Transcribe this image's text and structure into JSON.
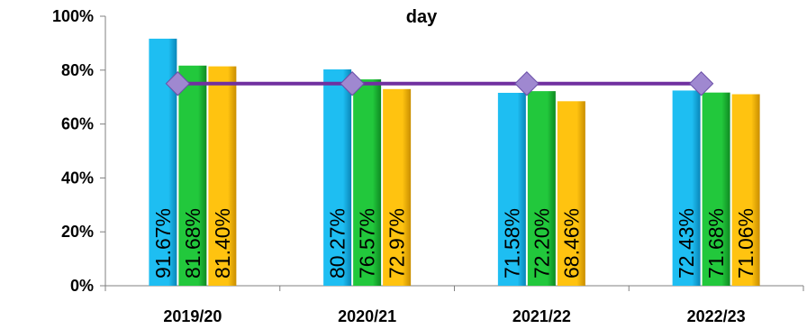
{
  "chart_data": {
    "type": "bar",
    "title": "day",
    "categories": [
      "2019/20",
      "2020/21",
      "2021/22",
      "2022/23"
    ],
    "series": [
      {
        "values": [
          91.67,
          80.27,
          71.58,
          72.43
        ],
        "labels": [
          "91.67%",
          "80.27%",
          "71.58%",
          "72.43%"
        ],
        "color": "#1EBEF2",
        "color_dark": "#0A86B8"
      },
      {
        "values": [
          81.68,
          76.57,
          72.2,
          71.68
        ],
        "labels": [
          "81.68%",
          "76.57%",
          "72.20%",
          "71.68%"
        ],
        "color": "#22C83C",
        "color_dark": "#0F8A22"
      },
      {
        "values": [
          81.4,
          72.97,
          68.46,
          71.06
        ],
        "labels": [
          "81.40%",
          "72.97%",
          "68.46%",
          "71.06%"
        ],
        "color": "#FFC310",
        "color_dark": "#C98E00"
      }
    ],
    "target_line": {
      "type": "line",
      "values": [
        75,
        75,
        75,
        75
      ],
      "color": "#7030A0",
      "marker": "diamond",
      "marker_color": "#9F88D0"
    },
    "ylim": [
      0,
      100
    ],
    "y_ticks": [
      0,
      20,
      40,
      60,
      80,
      100
    ],
    "y_tick_labels": [
      "0%",
      "20%",
      "40%",
      "60%",
      "80%",
      "100%"
    ],
    "legend": "none",
    "grid": false
  }
}
